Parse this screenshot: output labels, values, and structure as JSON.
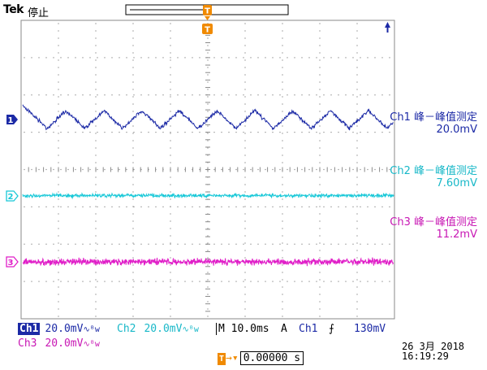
{
  "header": {
    "brand": "Tek",
    "status": "停止"
  },
  "colors": {
    "ch1": "#1c2aa6",
    "ch2": "#18c8d8",
    "ch3": "#e01ec8",
    "trigger": "#f08a00",
    "grid": "#8a8a8a"
  },
  "trigger": {
    "top_marker": "T",
    "bottom_marker": "T"
  },
  "channels": [
    {
      "id": "1",
      "marker": "1",
      "measure_label": "Ch1 峰－峰值测定",
      "measure_value": "20.0mV"
    },
    {
      "id": "2",
      "marker": "2",
      "measure_label": "Ch2 峰－峰值测定",
      "measure_value": "7.60mV"
    },
    {
      "id": "3",
      "marker": "3",
      "measure_label": "Ch3 峰－峰值测定",
      "measure_value": "11.2mV"
    }
  ],
  "readout": {
    "ch1_label": "Ch1",
    "ch1_scale": "20.0mV",
    "ch2_label": "Ch2",
    "ch2_scale": "20.0mV",
    "ch3_label": "Ch3",
    "ch3_scale": "20.0mV",
    "bw_icon": "bandwidth-limit-icon",
    "timebase": "M 10.0ms",
    "trigger_mode": "A",
    "trigger_source": "Ch1",
    "trigger_slope_icon": "rising-edge-icon",
    "trigger_level": "130mV",
    "trigger_position": "0.00000 s"
  },
  "datetime": {
    "date": "26 3月  2018",
    "time": "16:19:29"
  }
}
